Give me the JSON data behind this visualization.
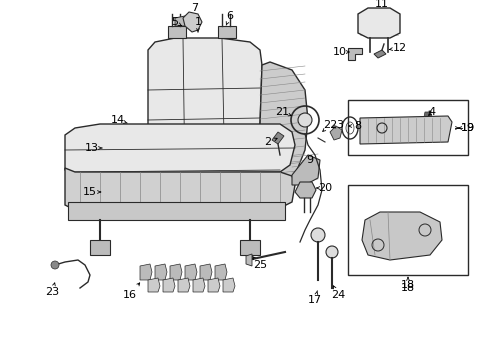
{
  "background_color": "#ffffff",
  "fig_width": 4.89,
  "fig_height": 3.6,
  "dpi": 100,
  "label_fontsize": 8.0,
  "line_color": "#2a2a2a",
  "fill_color": "#e8e8e8",
  "fill_color2": "#d0d0d0"
}
